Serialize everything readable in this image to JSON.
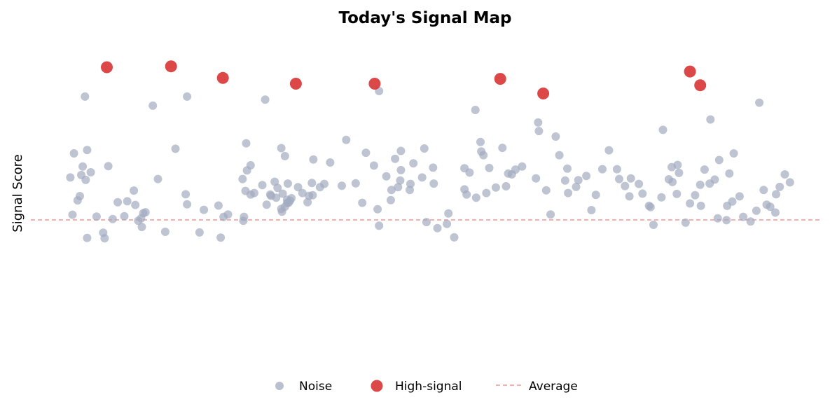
{
  "chart_data": {
    "type": "scatter",
    "title": "Today's Signal Map",
    "xlabel": "",
    "ylabel": "Signal Score",
    "xlim": [
      0,
      100
    ],
    "ylim": [
      0,
      100
    ],
    "grid": false,
    "legend_position": "bottom-center",
    "average": 50,
    "colors": {
      "noise": "#a3abbf",
      "high_signal": "#d62728",
      "average_line": "#f08080"
    },
    "series": [
      {
        "name": "Noise",
        "points": [
          [
            1.5,
            71.8
          ],
          [
            2.3,
            57.8
          ],
          [
            3.3,
            44.1
          ],
          [
            1.3,
            51.7
          ],
          [
            1.0,
            63.9
          ],
          [
            2.0,
            56.4
          ],
          [
            2.7,
            67.5
          ],
          [
            3.1,
            63.1
          ],
          [
            4.6,
            51.1
          ],
          [
            2.5,
            64.7
          ],
          [
            3.8,
            65.6
          ],
          [
            3.3,
            72.9
          ],
          [
            3.0,
            90.4
          ],
          [
            5.7,
            44.0
          ],
          [
            6.8,
            50.3
          ],
          [
            5.5,
            45.8
          ],
          [
            7.5,
            55.8
          ],
          [
            8.4,
            51.2
          ],
          [
            6.2,
            67.6
          ],
          [
            9.7,
            59.6
          ],
          [
            9.9,
            54.9
          ],
          [
            10.8,
            47.7
          ],
          [
            10.3,
            49.7
          ],
          [
            8.8,
            56.1
          ],
          [
            11.3,
            52.5
          ],
          [
            11.0,
            52.2
          ],
          [
            10.7,
            50.5
          ],
          [
            12.3,
            87.4
          ],
          [
            13.0,
            63.4
          ],
          [
            14.0,
            46.1
          ],
          [
            15.4,
            73.3
          ],
          [
            17.0,
            55.1
          ],
          [
            18.7,
            45.9
          ],
          [
            16.8,
            58.4
          ],
          [
            17.0,
            90.4
          ],
          [
            19.3,
            53.3
          ],
          [
            21.3,
            54.7
          ],
          [
            22.0,
            51.0
          ],
          [
            21.6,
            44.2
          ],
          [
            24.7,
            49.7
          ],
          [
            24.8,
            51.0
          ],
          [
            22.6,
            51.8
          ],
          [
            24.6,
            63.4
          ],
          [
            25.7,
            58.3
          ],
          [
            25.7,
            67.9
          ],
          [
            25.0,
            59.5
          ],
          [
            25.2,
            66.2
          ],
          [
            25.1,
            75.1
          ],
          [
            26.2,
            58.8
          ],
          [
            27.3,
            61.4
          ],
          [
            27.7,
            89.4
          ],
          [
            27.9,
            55.0
          ],
          [
            28.5,
            57.9
          ],
          [
            28.4,
            58.3
          ],
          [
            29.2,
            57.3
          ],
          [
            29.0,
            62.5
          ],
          [
            29.4,
            60.5
          ],
          [
            29.9,
            53.6
          ],
          [
            30.7,
            56.6
          ],
          [
            30.1,
            58.6
          ],
          [
            30.4,
            54.3
          ],
          [
            30.4,
            70.9
          ],
          [
            31.3,
            57.1
          ],
          [
            31.1,
            56.3
          ],
          [
            29.9,
            73.5
          ],
          [
            30.7,
            55.5
          ],
          [
            30.8,
            61.9
          ],
          [
            32.2,
            60.7
          ],
          [
            32.8,
            58.8
          ],
          [
            30.0,
            52.7
          ],
          [
            30.9,
            55.6
          ],
          [
            33.5,
            55.8
          ],
          [
            34.2,
            58.1
          ],
          [
            33.7,
            57.9
          ],
          [
            34.1,
            62.1
          ],
          [
            34.3,
            69.8
          ],
          [
            35.2,
            60.7
          ],
          [
            35.8,
            61.8
          ],
          [
            36.6,
            68.8
          ],
          [
            38.2,
            61.2
          ],
          [
            38.8,
            76.2
          ],
          [
            40.1,
            62.0
          ],
          [
            41.0,
            55.6
          ],
          [
            41.5,
            72.0
          ],
          [
            42.6,
            67.8
          ],
          [
            43.3,
            92.2
          ],
          [
            43.3,
            48.1
          ],
          [
            43.1,
            53.5
          ],
          [
            44.3,
            64.3
          ],
          [
            44.9,
            56.5
          ],
          [
            45.0,
            59.8
          ],
          [
            45.5,
            70.0
          ],
          [
            45.9,
            60.7
          ],
          [
            46.3,
            66.3
          ],
          [
            46.2,
            62.9
          ],
          [
            46.3,
            72.6
          ],
          [
            47.5,
            59.8
          ],
          [
            48.0,
            68.5
          ],
          [
            47.6,
            61.8
          ],
          [
            49.2,
            63.9
          ],
          [
            49.5,
            73.4
          ],
          [
            49.8,
            49.3
          ],
          [
            50.8,
            61.9
          ],
          [
            50.7,
            67.1
          ],
          [
            51.3,
            47.3
          ],
          [
            52.6,
            48.7
          ],
          [
            52.8,
            52.1
          ],
          [
            53.6,
            44.3
          ],
          [
            55.0,
            66.9
          ],
          [
            55.0,
            60.0
          ],
          [
            55.3,
            58.3
          ],
          [
            55.7,
            65.5
          ],
          [
            56.6,
            57.3
          ],
          [
            57.3,
            72.4
          ],
          [
            56.5,
            86.0
          ],
          [
            57.6,
            71.2
          ],
          [
            58.0,
            58.8
          ],
          [
            57.2,
            75.5
          ],
          [
            58.4,
            67.0
          ],
          [
            59.3,
            60.6
          ],
          [
            60.2,
            73.6
          ],
          [
            61.0,
            65.2
          ],
          [
            60.7,
            61.0
          ],
          [
            61.5,
            64.9
          ],
          [
            62.0,
            66.5
          ],
          [
            62.9,
            67.5
          ],
          [
            64.8,
            63.6
          ],
          [
            65.2,
            79.1
          ],
          [
            65.1,
            81.9
          ],
          [
            66.2,
            59.7
          ],
          [
            66.8,
            51.8
          ],
          [
            67.5,
            77.3
          ],
          [
            68.0,
            71.2
          ],
          [
            68.8,
            62.9
          ],
          [
            69.1,
            66.8
          ],
          [
            69.2,
            58.8
          ],
          [
            70.3,
            60.8
          ],
          [
            70.6,
            63.0
          ],
          [
            71.7,
            64.4
          ],
          [
            72.4,
            53.2
          ],
          [
            73.0,
            58.2
          ],
          [
            73.9,
            66.6
          ],
          [
            74.8,
            72.8
          ],
          [
            75.9,
            66.6
          ],
          [
            76.2,
            63.4
          ],
          [
            77.0,
            61.1
          ],
          [
            77.6,
            57.7
          ],
          [
            77.8,
            63.6
          ],
          [
            78.9,
            61.8
          ],
          [
            79.4,
            58.6
          ],
          [
            80.3,
            54.6
          ],
          [
            80.9,
            48.4
          ],
          [
            80.5,
            54.2
          ],
          [
            82.0,
            57.4
          ],
          [
            82.2,
            79.5
          ],
          [
            83.0,
            63.3
          ],
          [
            83.4,
            67.3
          ],
          [
            84.1,
            58.5
          ],
          [
            83.5,
            62.4
          ],
          [
            84.2,
            68.0
          ],
          [
            84.4,
            65.4
          ],
          [
            85.3,
            49.1
          ],
          [
            85.9,
            55.4
          ],
          [
            86.6,
            58.1
          ],
          [
            87.3,
            61.5
          ],
          [
            87.9,
            66.5
          ],
          [
            88.6,
            61.9
          ],
          [
            89.3,
            63.2
          ],
          [
            89.9,
            69.6
          ],
          [
            88.7,
            82.9
          ],
          [
            87.4,
            54.6
          ],
          [
            91.0,
            54.6
          ],
          [
            91.3,
            65.2
          ],
          [
            91.9,
            71.8
          ],
          [
            90.9,
            49.9
          ],
          [
            89.7,
            50.5
          ],
          [
            91.7,
            56.0
          ],
          [
            92.7,
            57.7
          ],
          [
            93.2,
            51.0
          ],
          [
            94.2,
            49.5
          ],
          [
            95.0,
            53.0
          ],
          [
            96.0,
            59.8
          ],
          [
            96.4,
            55.0
          ],
          [
            97.6,
            52.4
          ],
          [
            98.2,
            60.8
          ],
          [
            98.9,
            64.9
          ],
          [
            99.6,
            62.3
          ],
          [
            97.7,
            58.4
          ],
          [
            96.9,
            54.3
          ],
          [
            95.4,
            88.4
          ]
        ]
      },
      {
        "name": "High-signal",
        "points": [
          [
            6.0,
            100.0
          ],
          [
            14.8,
            100.3
          ],
          [
            21.9,
            96.5
          ],
          [
            31.9,
            94.6
          ],
          [
            42.7,
            94.6
          ],
          [
            59.9,
            96.2
          ],
          [
            65.8,
            91.4
          ],
          [
            85.9,
            98.6
          ],
          [
            87.3,
            94.1
          ]
        ]
      }
    ],
    "legend": {
      "noise": "Noise",
      "high_signal": "High-signal",
      "average": "Average"
    }
  }
}
